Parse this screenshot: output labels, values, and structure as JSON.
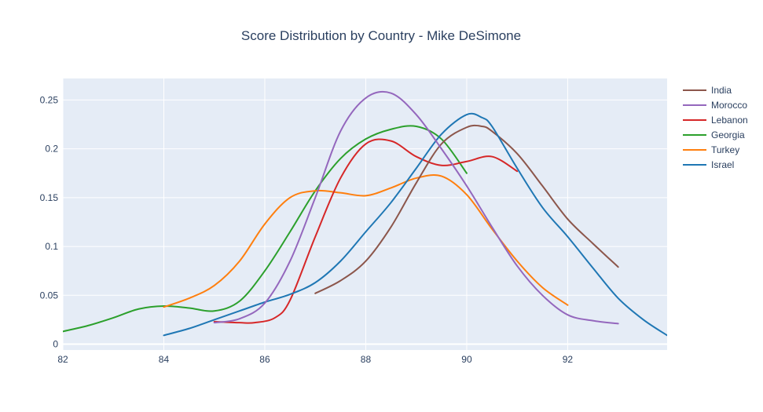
{
  "chart_data": {
    "type": "line",
    "title": "Score Distribution by Country - Mike DeSimone",
    "xlabel": "",
    "ylabel": "",
    "xlim": [
      82,
      93.97
    ],
    "ylim": [
      -0.006,
      0.272
    ],
    "xticks": [
      82,
      84,
      86,
      88,
      90,
      92
    ],
    "yticks": [
      0,
      0.05,
      0.1,
      0.15,
      0.2,
      0.25
    ],
    "xtick_labels": [
      "82",
      "84",
      "86",
      "88",
      "90",
      "92"
    ],
    "ytick_labels": [
      "0",
      "0.05",
      "0.1",
      "0.15",
      "0.2",
      "0.25"
    ],
    "grid": true,
    "legend_position": "top-right",
    "colors": {
      "plot_bg": "#e5ecf6",
      "grid": "#ffffff",
      "text": "#2a3f5f"
    },
    "series": [
      {
        "name": "India",
        "color": "#8c564b",
        "x": [
          87,
          87.5,
          88,
          88.5,
          89,
          89.5,
          90,
          90.3,
          90.5,
          91,
          91.5,
          92,
          92.5,
          93
        ],
        "y": [
          0.052,
          0.065,
          0.085,
          0.12,
          0.165,
          0.205,
          0.222,
          0.223,
          0.218,
          0.195,
          0.162,
          0.128,
          0.103,
          0.079
        ]
      },
      {
        "name": "Morocco",
        "color": "#9467bd",
        "x": [
          85,
          85.5,
          86,
          86.5,
          87,
          87.5,
          88,
          88.5,
          89,
          89.5,
          90,
          90.5,
          91,
          91.5,
          92,
          92.5,
          93
        ],
        "y": [
          0.022,
          0.026,
          0.042,
          0.085,
          0.15,
          0.218,
          0.252,
          0.257,
          0.235,
          0.2,
          0.162,
          0.12,
          0.08,
          0.05,
          0.03,
          0.024,
          0.021
        ]
      },
      {
        "name": "Lebanon",
        "color": "#d62728",
        "x": [
          85,
          85.5,
          85.8,
          86.2,
          86.5,
          87,
          87.5,
          88,
          88.5,
          89,
          89.5,
          90,
          90.5,
          91
        ],
        "y": [
          0.023,
          0.022,
          0.022,
          0.027,
          0.045,
          0.11,
          0.17,
          0.205,
          0.208,
          0.192,
          0.183,
          0.187,
          0.192,
          0.177
        ]
      },
      {
        "name": "Georgia",
        "color": "#2ca02c",
        "x": [
          82,
          82.5,
          83,
          83.5,
          84,
          84.5,
          85,
          85.5,
          86,
          86.5,
          87,
          87.5,
          88,
          88.5,
          89,
          89.5,
          90
        ],
        "y": [
          0.013,
          0.019,
          0.027,
          0.036,
          0.039,
          0.037,
          0.034,
          0.044,
          0.075,
          0.115,
          0.157,
          0.19,
          0.21,
          0.22,
          0.223,
          0.21,
          0.175
        ]
      },
      {
        "name": "Turkey",
        "color": "#ff7f0e",
        "x": [
          84,
          84.5,
          85,
          85.5,
          86,
          86.5,
          87,
          87.5,
          88,
          88.5,
          89,
          89.5,
          90,
          90.5,
          91,
          91.5,
          92
        ],
        "y": [
          0.038,
          0.047,
          0.06,
          0.085,
          0.123,
          0.15,
          0.157,
          0.155,
          0.152,
          0.16,
          0.17,
          0.172,
          0.153,
          0.118,
          0.085,
          0.058,
          0.04
        ]
      },
      {
        "name": "Israel",
        "color": "#1f77b4",
        "x": [
          84,
          84.5,
          85,
          85.5,
          86,
          86.5,
          87,
          87.5,
          88,
          88.5,
          89,
          89.5,
          90,
          90.3,
          90.5,
          91,
          91.5,
          92,
          92.5,
          93,
          93.5,
          93.97
        ],
        "y": [
          0.009,
          0.016,
          0.025,
          0.034,
          0.043,
          0.051,
          0.063,
          0.085,
          0.115,
          0.145,
          0.18,
          0.215,
          0.235,
          0.232,
          0.223,
          0.18,
          0.14,
          0.11,
          0.078,
          0.047,
          0.025,
          0.009
        ]
      }
    ]
  }
}
